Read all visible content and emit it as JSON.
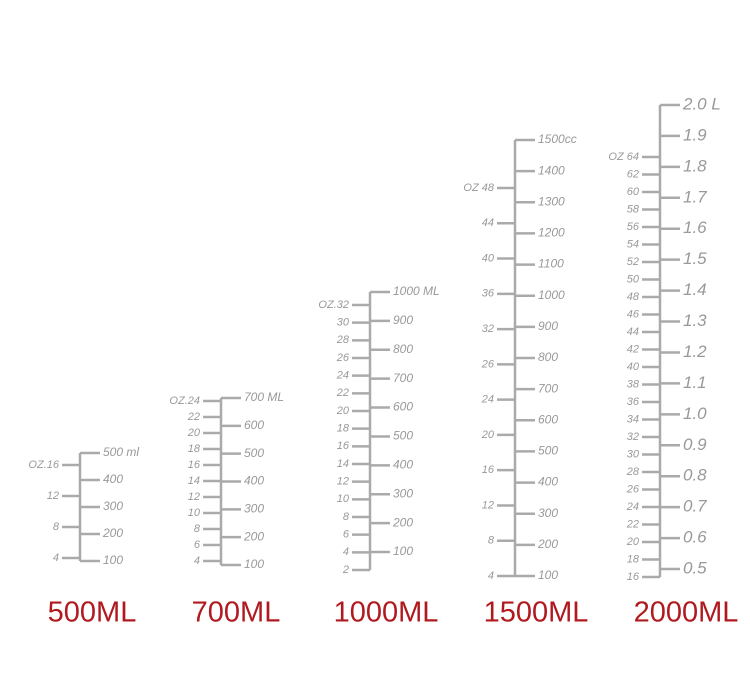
{
  "scales": [
    {
      "name": "500ML",
      "oz_ticks": [
        4,
        8,
        12,
        "OZ.16"
      ],
      "capacity_ticks": [
        100,
        200,
        300,
        400,
        "500 ml"
      ]
    },
    {
      "name": "700ML",
      "oz_ticks": [
        4,
        6,
        8,
        10,
        12,
        14,
        16,
        18,
        20,
        22,
        "OZ.24"
      ],
      "capacity_ticks": [
        100,
        200,
        300,
        400,
        500,
        600,
        "700 ML"
      ]
    },
    {
      "name": "1000ML",
      "oz_ticks": [
        2,
        4,
        6,
        8,
        10,
        12,
        14,
        16,
        18,
        20,
        22,
        24,
        26,
        28,
        30,
        "OZ.32"
      ],
      "capacity_ticks": [
        100,
        200,
        300,
        400,
        500,
        600,
        700,
        800,
        900,
        "1000 ML"
      ]
    },
    {
      "name": "1500ML",
      "oz_ticks": [
        4,
        8,
        12,
        16,
        20,
        24,
        26,
        32,
        36,
        40,
        44,
        "OZ 48"
      ],
      "capacity_ticks": [
        100,
        200,
        300,
        400,
        500,
        600,
        700,
        800,
        900,
        1000,
        1100,
        1200,
        1300,
        1400,
        "1500cc"
      ]
    },
    {
      "name": "2000ML",
      "oz_ticks": [
        16,
        18,
        20,
        22,
        24,
        26,
        28,
        30,
        32,
        34,
        36,
        38,
        40,
        42,
        44,
        46,
        48,
        50,
        52,
        54,
        56,
        58,
        60,
        62,
        "OZ 64"
      ],
      "capacity_ticks": [
        0.5,
        0.6,
        0.7,
        0.8,
        0.9,
        "1.0",
        1.1,
        1.2,
        1.3,
        1.4,
        1.5,
        1.6,
        1.7,
        1.8,
        1.9,
        "2.0 L"
      ]
    }
  ]
}
